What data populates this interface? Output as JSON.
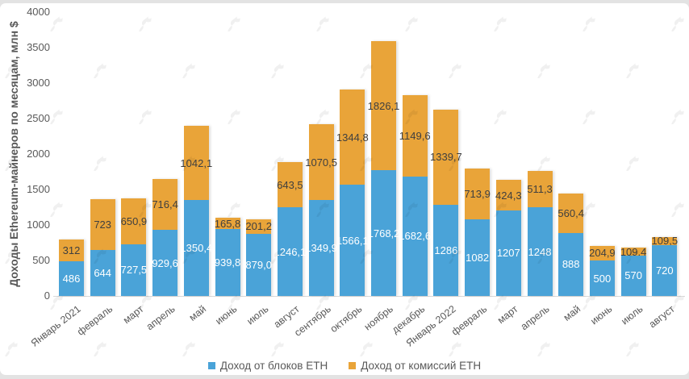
{
  "window": {
    "frame_color": "#e3e3e3",
    "card_color": "#ffffff"
  },
  "chart_data": {
    "type": "bar",
    "stacked": true,
    "title": "",
    "xlabel": "",
    "ylabel": "Доходы Ethereum-майнеров по месяцам, млн $",
    "ylim": [
      0,
      4000
    ],
    "yticks": [
      0,
      500,
      1000,
      1500,
      2000,
      2500,
      3000,
      3500,
      4000
    ],
    "grid": false,
    "legend_position": "bottom",
    "categories": [
      "Январь 2021",
      "февраль",
      "март",
      "апрель",
      "май",
      "июнь",
      "июль",
      "август",
      "сентябрь",
      "октябрь",
      "ноябрь",
      "декабрь",
      "Январь 2022",
      "февраль",
      "март",
      "апрель",
      "май",
      "июнь",
      "июль",
      "август"
    ],
    "series": [
      {
        "name": "Доход от блоков ETH",
        "color": "#4AA3D8",
        "label_color": "#ffffff",
        "values": [
          486,
          644,
          727.5,
          929.6,
          1350.4,
          939.8,
          879.0,
          1246.1,
          1349.9,
          1566.1,
          1768.2,
          1682.6,
          1286,
          1082,
          1207,
          1248,
          888,
          500,
          570,
          720
        ],
        "labels": [
          "486",
          "644",
          "727,5",
          "929,6",
          "1350,4",
          "939,8",
          "879,0",
          "1246,1",
          "1349,9",
          "1566,1",
          "1768,2",
          "1682,6",
          "1286",
          "1082",
          "1207",
          "1248",
          "888",
          "500",
          "570",
          "720"
        ]
      },
      {
        "name": "Доход от комиссий ETH",
        "color": "#E9A439",
        "label_color": "#3F3F3F",
        "values": [
          312,
          723,
          650.9,
          716.4,
          1042.1,
          165.8,
          201.2,
          643.5,
          1070.5,
          1344.8,
          1826.1,
          1149.6,
          1339.7,
          713.9,
          424.3,
          511.3,
          560.4,
          204.9,
          109.4,
          109.5
        ],
        "labels": [
          "312",
          "723",
          "650,9",
          "716,4",
          "1042,1",
          "165,8",
          "201,2",
          "643,5",
          "1070,5",
          "1344,8",
          "1826,1",
          "1149,6",
          "1339,7",
          "713,9",
          "424,3",
          "511,3",
          "560,4",
          "204,9",
          "109,4",
          "109,5"
        ]
      }
    ]
  }
}
